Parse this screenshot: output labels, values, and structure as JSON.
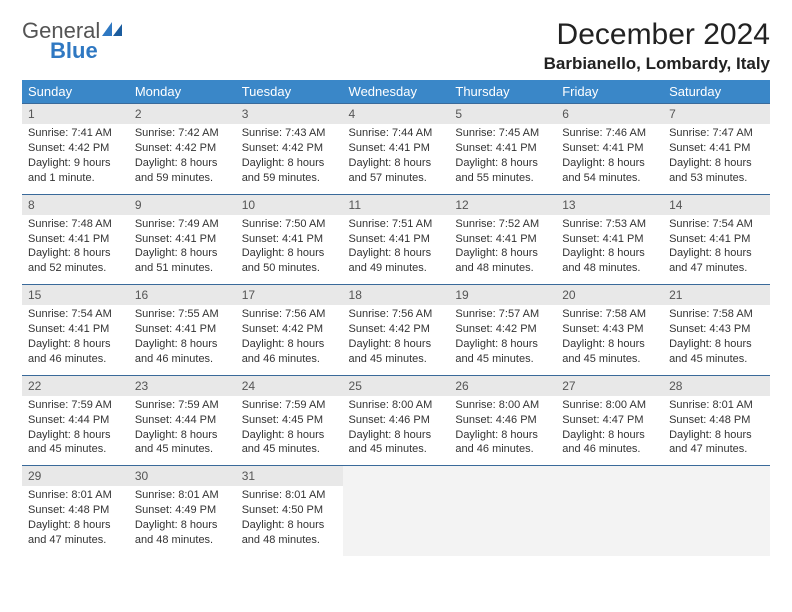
{
  "logo": {
    "part1": "General",
    "part2": "Blue"
  },
  "title": "December 2024",
  "location": "Barbianello, Lombardy, Italy",
  "colors": {
    "header_bg": "#3a87c8",
    "header_text": "#ffffff",
    "daynum_bg": "#e8e8e8",
    "row_divider": "#3a6a9a",
    "logo_accent": "#2f78c2",
    "logo_gray": "#545454"
  },
  "weekdays": [
    "Sunday",
    "Monday",
    "Tuesday",
    "Wednesday",
    "Thursday",
    "Friday",
    "Saturday"
  ],
  "weeks": [
    [
      {
        "n": "1",
        "sr": "Sunrise: 7:41 AM",
        "ss": "Sunset: 4:42 PM",
        "d1": "Daylight: 9 hours",
        "d2": "and 1 minute."
      },
      {
        "n": "2",
        "sr": "Sunrise: 7:42 AM",
        "ss": "Sunset: 4:42 PM",
        "d1": "Daylight: 8 hours",
        "d2": "and 59 minutes."
      },
      {
        "n": "3",
        "sr": "Sunrise: 7:43 AM",
        "ss": "Sunset: 4:42 PM",
        "d1": "Daylight: 8 hours",
        "d2": "and 59 minutes."
      },
      {
        "n": "4",
        "sr": "Sunrise: 7:44 AM",
        "ss": "Sunset: 4:41 PM",
        "d1": "Daylight: 8 hours",
        "d2": "and 57 minutes."
      },
      {
        "n": "5",
        "sr": "Sunrise: 7:45 AM",
        "ss": "Sunset: 4:41 PM",
        "d1": "Daylight: 8 hours",
        "d2": "and 55 minutes."
      },
      {
        "n": "6",
        "sr": "Sunrise: 7:46 AM",
        "ss": "Sunset: 4:41 PM",
        "d1": "Daylight: 8 hours",
        "d2": "and 54 minutes."
      },
      {
        "n": "7",
        "sr": "Sunrise: 7:47 AM",
        "ss": "Sunset: 4:41 PM",
        "d1": "Daylight: 8 hours",
        "d2": "and 53 minutes."
      }
    ],
    [
      {
        "n": "8",
        "sr": "Sunrise: 7:48 AM",
        "ss": "Sunset: 4:41 PM",
        "d1": "Daylight: 8 hours",
        "d2": "and 52 minutes."
      },
      {
        "n": "9",
        "sr": "Sunrise: 7:49 AM",
        "ss": "Sunset: 4:41 PM",
        "d1": "Daylight: 8 hours",
        "d2": "and 51 minutes."
      },
      {
        "n": "10",
        "sr": "Sunrise: 7:50 AM",
        "ss": "Sunset: 4:41 PM",
        "d1": "Daylight: 8 hours",
        "d2": "and 50 minutes."
      },
      {
        "n": "11",
        "sr": "Sunrise: 7:51 AM",
        "ss": "Sunset: 4:41 PM",
        "d1": "Daylight: 8 hours",
        "d2": "and 49 minutes."
      },
      {
        "n": "12",
        "sr": "Sunrise: 7:52 AM",
        "ss": "Sunset: 4:41 PM",
        "d1": "Daylight: 8 hours",
        "d2": "and 48 minutes."
      },
      {
        "n": "13",
        "sr": "Sunrise: 7:53 AM",
        "ss": "Sunset: 4:41 PM",
        "d1": "Daylight: 8 hours",
        "d2": "and 48 minutes."
      },
      {
        "n": "14",
        "sr": "Sunrise: 7:54 AM",
        "ss": "Sunset: 4:41 PM",
        "d1": "Daylight: 8 hours",
        "d2": "and 47 minutes."
      }
    ],
    [
      {
        "n": "15",
        "sr": "Sunrise: 7:54 AM",
        "ss": "Sunset: 4:41 PM",
        "d1": "Daylight: 8 hours",
        "d2": "and 46 minutes."
      },
      {
        "n": "16",
        "sr": "Sunrise: 7:55 AM",
        "ss": "Sunset: 4:41 PM",
        "d1": "Daylight: 8 hours",
        "d2": "and 46 minutes."
      },
      {
        "n": "17",
        "sr": "Sunrise: 7:56 AM",
        "ss": "Sunset: 4:42 PM",
        "d1": "Daylight: 8 hours",
        "d2": "and 46 minutes."
      },
      {
        "n": "18",
        "sr": "Sunrise: 7:56 AM",
        "ss": "Sunset: 4:42 PM",
        "d1": "Daylight: 8 hours",
        "d2": "and 45 minutes."
      },
      {
        "n": "19",
        "sr": "Sunrise: 7:57 AM",
        "ss": "Sunset: 4:42 PM",
        "d1": "Daylight: 8 hours",
        "d2": "and 45 minutes."
      },
      {
        "n": "20",
        "sr": "Sunrise: 7:58 AM",
        "ss": "Sunset: 4:43 PM",
        "d1": "Daylight: 8 hours",
        "d2": "and 45 minutes."
      },
      {
        "n": "21",
        "sr": "Sunrise: 7:58 AM",
        "ss": "Sunset: 4:43 PM",
        "d1": "Daylight: 8 hours",
        "d2": "and 45 minutes."
      }
    ],
    [
      {
        "n": "22",
        "sr": "Sunrise: 7:59 AM",
        "ss": "Sunset: 4:44 PM",
        "d1": "Daylight: 8 hours",
        "d2": "and 45 minutes."
      },
      {
        "n": "23",
        "sr": "Sunrise: 7:59 AM",
        "ss": "Sunset: 4:44 PM",
        "d1": "Daylight: 8 hours",
        "d2": "and 45 minutes."
      },
      {
        "n": "24",
        "sr": "Sunrise: 7:59 AM",
        "ss": "Sunset: 4:45 PM",
        "d1": "Daylight: 8 hours",
        "d2": "and 45 minutes."
      },
      {
        "n": "25",
        "sr": "Sunrise: 8:00 AM",
        "ss": "Sunset: 4:46 PM",
        "d1": "Daylight: 8 hours",
        "d2": "and 45 minutes."
      },
      {
        "n": "26",
        "sr": "Sunrise: 8:00 AM",
        "ss": "Sunset: 4:46 PM",
        "d1": "Daylight: 8 hours",
        "d2": "and 46 minutes."
      },
      {
        "n": "27",
        "sr": "Sunrise: 8:00 AM",
        "ss": "Sunset: 4:47 PM",
        "d1": "Daylight: 8 hours",
        "d2": "and 46 minutes."
      },
      {
        "n": "28",
        "sr": "Sunrise: 8:01 AM",
        "ss": "Sunset: 4:48 PM",
        "d1": "Daylight: 8 hours",
        "d2": "and 47 minutes."
      }
    ],
    [
      {
        "n": "29",
        "sr": "Sunrise: 8:01 AM",
        "ss": "Sunset: 4:48 PM",
        "d1": "Daylight: 8 hours",
        "d2": "and 47 minutes."
      },
      {
        "n": "30",
        "sr": "Sunrise: 8:01 AM",
        "ss": "Sunset: 4:49 PM",
        "d1": "Daylight: 8 hours",
        "d2": "and 48 minutes."
      },
      {
        "n": "31",
        "sr": "Sunrise: 8:01 AM",
        "ss": "Sunset: 4:50 PM",
        "d1": "Daylight: 8 hours",
        "d2": "and 48 minutes."
      },
      null,
      null,
      null,
      null
    ]
  ]
}
